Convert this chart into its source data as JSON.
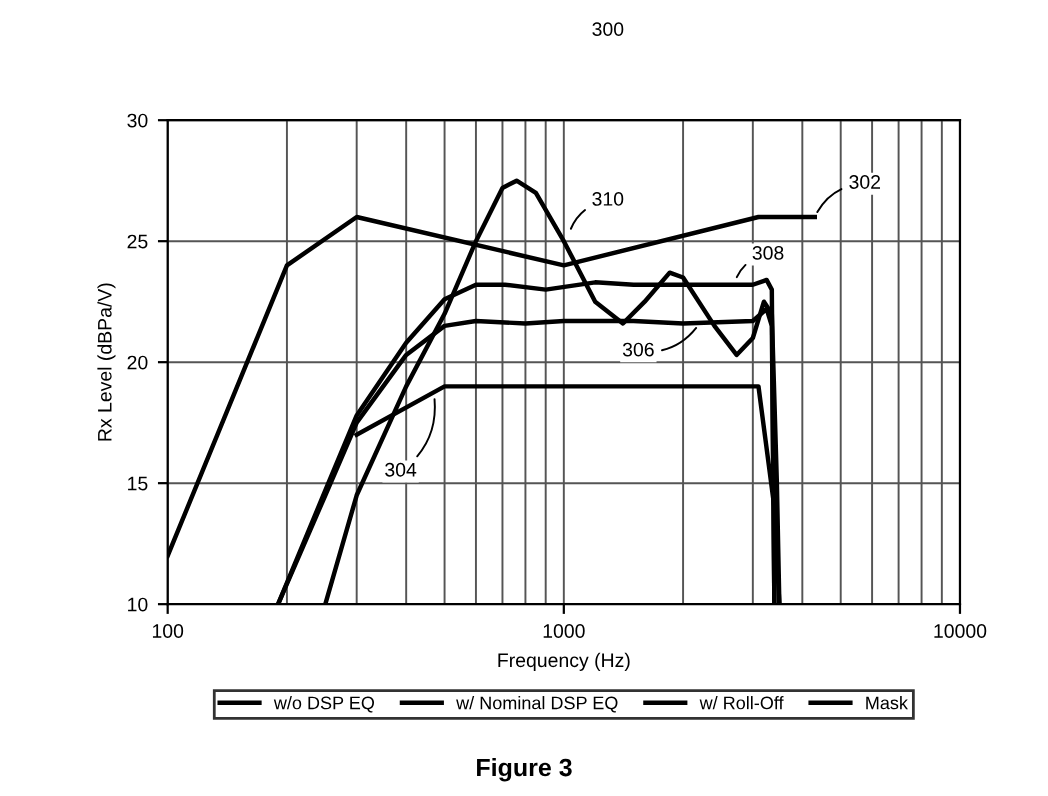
{
  "chart_data": {
    "type": "line",
    "xlabel": "Frequency (Hz)",
    "ylabel": "Rx Level (dBPa/V)",
    "log": "x",
    "xlim": [
      100,
      10000
    ],
    "xticks": [
      100,
      1000,
      10000
    ],
    "ylim": [
      10,
      30
    ],
    "yticks": [
      10,
      15,
      20,
      25,
      30
    ],
    "grid": true,
    "legend": "bottom",
    "marker": "none",
    "line_style": "solid",
    "series": [
      {
        "name": "w/o DSP EQ",
        "color": "#000000",
        "x": [
          250,
          300,
          400,
          500,
          600,
          700,
          760,
          850,
          1000,
          1200,
          1410,
          1600,
          1850,
          2000,
          2400,
          2730,
          3000,
          3200,
          3350,
          3450,
          3500
        ],
        "values": [
          10,
          14.5,
          19,
          22,
          25,
          27.2,
          27.5,
          27,
          25,
          22.5,
          21.6,
          22.5,
          23.7,
          23.5,
          21.5,
          20.3,
          21,
          22.5,
          22,
          15,
          10
        ]
      },
      {
        "name": "w/ Nominal DSP EQ",
        "color": "#000000",
        "x": [
          190,
          250,
          300,
          400,
          500,
          600,
          710,
          900,
          1200,
          1500,
          2000,
          3000,
          3250,
          3350,
          3400
        ],
        "values": [
          10,
          14.7,
          17.8,
          20.8,
          22.6,
          23.2,
          23.2,
          23,
          23.3,
          23.2,
          23.2,
          23.2,
          23.4,
          23,
          10
        ]
      },
      {
        "name": "w/ Roll-Off",
        "color": "#000000",
        "x": [
          190,
          250,
          300,
          400,
          500,
          600,
          800,
          1000,
          1500,
          2000,
          3000,
          3250,
          3350,
          3400
        ],
        "values": [
          10,
          14.5,
          17.5,
          20.3,
          21.5,
          21.7,
          21.6,
          21.7,
          21.7,
          21.6,
          21.7,
          22.2,
          21.5,
          10
        ]
      },
      {
        "name": "Mask",
        "color": "#000000",
        "x": [
          100,
          200,
          300,
          1000,
          3100,
          4300,
          null,
          300,
          500,
          3100,
          3400,
          3500
        ],
        "values": [
          12,
          24,
          26,
          24,
          26,
          26,
          null,
          17,
          19,
          19,
          14,
          10
        ]
      }
    ],
    "annotations": [
      "300",
      {
        "text": "302",
        "x": 4300,
        "y": 26
      },
      {
        "text": "304",
        "x": 470,
        "y": 18.7
      },
      {
        "text": "306",
        "x": 2200,
        "y": 21.6
      },
      {
        "text": "308",
        "x": 2700,
        "y": 23.3
      },
      {
        "text": "310",
        "x": 1030,
        "y": 25.3
      },
      "Figure 3"
    ]
  }
}
